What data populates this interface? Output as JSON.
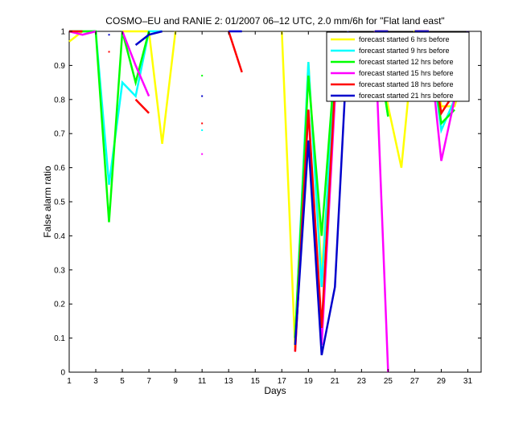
{
  "chart_data": {
    "type": "line",
    "title": "COSMO–EU and RANIE 2: 01/2007 06–12 UTC, 2.0 mm/6h for \"Flat land east\"",
    "xlabel": "Days",
    "ylabel": "False alarm ratio",
    "xlim": [
      1,
      32
    ],
    "ylim": [
      0,
      1
    ],
    "xticks": [
      1,
      3,
      5,
      7,
      9,
      11,
      13,
      15,
      17,
      19,
      21,
      23,
      25,
      27,
      29,
      31
    ],
    "yticks": [
      0,
      0.1,
      0.2,
      0.3,
      0.4,
      0.5,
      0.6,
      0.7,
      0.8,
      0.9,
      1
    ],
    "ytick_labels": [
      "0",
      "0.1",
      "0.2",
      "0.3",
      "0.4",
      "0.5",
      "0.6",
      "0.7",
      "0.8",
      "0.9",
      "1"
    ],
    "grid": false,
    "legend_position": "top-right",
    "x": [
      1,
      2,
      3,
      4,
      5,
      6,
      7,
      8,
      9,
      10,
      11,
      12,
      13,
      14,
      15,
      16,
      17,
      18,
      19,
      20,
      21,
      22,
      23,
      24,
      25,
      26,
      27,
      28,
      29,
      30,
      31
    ],
    "series": [
      {
        "name": "forecast started 6 hrs before",
        "color": "#ffff00",
        "values": [
          0.97,
          1,
          1,
          null,
          1,
          1,
          1,
          0.67,
          1,
          null,
          null,
          null,
          null,
          null,
          null,
          null,
          1,
          0.07,
          0.91,
          0.29,
          0.83,
          1,
          null,
          1,
          0.78,
          0.6,
          1,
          1,
          0.78,
          0.78,
          0.91
        ]
      },
      {
        "name": "forecast started 9 hrs before",
        "color": "#00ffff",
        "values": [
          1,
          1,
          1,
          0.55,
          0.85,
          0.81,
          1,
          1,
          null,
          null,
          0.71,
          null,
          null,
          null,
          null,
          null,
          null,
          0.1,
          0.91,
          0.25,
          0.9,
          1,
          null,
          1,
          0.75,
          null,
          1,
          1,
          0.71,
          0.8,
          0.91
        ]
      },
      {
        "name": "forecast started 12 hrs before",
        "color": "#00ff00",
        "values": [
          1,
          1,
          1,
          0.44,
          1,
          0.85,
          1,
          null,
          null,
          null,
          0.87,
          null,
          null,
          null,
          null,
          null,
          null,
          0.1,
          0.87,
          0.4,
          0.91,
          1,
          null,
          1,
          0.75,
          null,
          1,
          1,
          0.73,
          0.77,
          null
        ]
      },
      {
        "name": "forecast started 15 hrs before",
        "color": "#ff00ff",
        "values": [
          1,
          0.99,
          1,
          null,
          1,
          0.9,
          0.81,
          null,
          null,
          null,
          0.64,
          null,
          null,
          null,
          null,
          null,
          null,
          0.06,
          0.77,
          0.08,
          0.8,
          1,
          null,
          1,
          0,
          null,
          1,
          1,
          0.62,
          0.8,
          1
        ]
      },
      {
        "name": "forecast started 18 hrs before",
        "color": "#ff0000",
        "values": [
          1,
          1,
          null,
          0.94,
          null,
          0.8,
          0.76,
          null,
          null,
          null,
          0.73,
          null,
          1,
          0.88,
          null,
          null,
          null,
          0.06,
          0.77,
          0.13,
          0.84,
          1,
          null,
          1,
          1,
          null,
          1,
          1,
          0.76,
          0.82,
          null
        ]
      },
      {
        "name": "forecast started 21 hrs before",
        "color": "#0000cc",
        "values": [
          null,
          null,
          null,
          0.99,
          null,
          0.96,
          0.99,
          1,
          null,
          null,
          0.81,
          null,
          1,
          1,
          null,
          null,
          null,
          0.08,
          0.68,
          0.05,
          0.25,
          1,
          null,
          1,
          1,
          null,
          1,
          1,
          0.89,
          0.84,
          1
        ]
      }
    ]
  }
}
